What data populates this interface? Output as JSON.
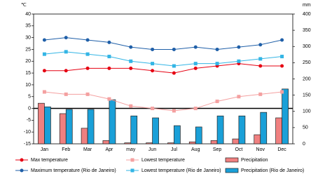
{
  "chart_data": {
    "type": "combo",
    "y_unit": "℃",
    "y2_unit": "mm",
    "categories": [
      "Jan",
      "Feb",
      "Mar",
      "Apr",
      "may",
      "Jun",
      "Jul",
      "Aug",
      "Sep",
      "Oct",
      "Nov",
      "Dec"
    ],
    "ylim": [
      -15,
      40
    ],
    "yticks": [
      -15,
      -10,
      -5,
      0,
      5,
      10,
      15,
      20,
      25,
      30,
      35,
      40
    ],
    "y2lim": [
      0,
      400
    ],
    "y2ticks": [
      0,
      50,
      100,
      150,
      200,
      250,
      300,
      350,
      400
    ],
    "series": [
      {
        "name": "Max temperature",
        "type": "line",
        "marker": "circle",
        "color": "#e60012",
        "values": [
          16,
          16,
          17,
          17,
          17,
          16,
          15,
          17,
          18,
          19,
          18,
          18
        ]
      },
      {
        "name": "Lowest temperature",
        "type": "line",
        "marker": "square",
        "color": "#f4a0a0",
        "values": [
          7,
          6,
          6,
          4,
          1,
          0,
          -1,
          0,
          3,
          5,
          6,
          7
        ]
      },
      {
        "name": "Precipitation",
        "type": "bar",
        "axis": "y2",
        "color": "#f08080",
        "values": [
          125,
          93,
          48,
          10,
          3,
          3,
          3,
          6,
          10,
          15,
          28,
          80
        ]
      },
      {
        "name": "Maximum temperature (Rio de Janeiro)",
        "type": "line",
        "marker": "circle",
        "color": "#1f5fa8",
        "values": [
          29,
          30,
          29,
          28,
          26,
          25,
          25,
          26,
          25,
          26,
          27,
          29
        ]
      },
      {
        "name": "Lowest temperature (Rio de Janeiro)",
        "type": "line",
        "marker": "square",
        "color": "#33b5e5",
        "values": [
          23,
          24,
          23,
          22,
          20,
          19,
          18,
          19,
          19,
          20,
          21,
          22
        ]
      },
      {
        "name": "Precipitation (Rio de Janeiro)",
        "type": "bar",
        "axis": "y2",
        "color": "#1aa0d8",
        "values": [
          114,
          106,
          106,
          136,
          86,
          80,
          56,
          52,
          86,
          86,
          97,
          169
        ]
      }
    ]
  }
}
